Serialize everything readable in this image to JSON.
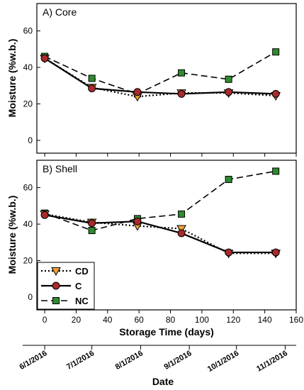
{
  "chart_data": {
    "type": "line",
    "xlabel": "Storage Time (days)",
    "secondary_xlabel": "Date",
    "ylabel": "Moisture (%w.b.)",
    "xlim": [
      -5,
      160
    ],
    "xticks": [
      0,
      20,
      40,
      60,
      80,
      100,
      120,
      140,
      160
    ],
    "ylim": [
      -7,
      75
    ],
    "yticks": [
      0,
      20,
      40,
      60
    ],
    "date_ticks": [
      {
        "label": "6/1/2016",
        "day": 0
      },
      {
        "label": "7/1/2016",
        "day": 30
      },
      {
        "label": "8/1/2016",
        "day": 61
      },
      {
        "label": "9/1/2016",
        "day": 92
      },
      {
        "label": "10/1/2016",
        "day": 122
      },
      {
        "label": "11/1/2016",
        "day": 153
      }
    ],
    "legend": {
      "placement": "bottom-left",
      "panel": "shell",
      "entries": [
        "CD",
        "C",
        "NC"
      ]
    },
    "panels": [
      {
        "id": "core",
        "title": "A) Core",
        "series": [
          {
            "name": "CD",
            "x": [
              0,
              30,
              59,
              87,
              117,
              147
            ],
            "y": [
              45,
              29,
              24,
              26,
              26,
              24.5
            ]
          },
          {
            "name": "C",
            "x": [
              0,
              30,
              59,
              87,
              117,
              147
            ],
            "y": [
              45,
              28.5,
              26.5,
              25.5,
              26.5,
              25.5
            ]
          },
          {
            "name": "NC",
            "x": [
              0,
              30,
              59,
              87,
              117,
              147
            ],
            "y": [
              46,
              34,
              25.5,
              37,
              33.5,
              48.5
            ]
          }
        ]
      },
      {
        "id": "shell",
        "title": "B) Shell",
        "series": [
          {
            "name": "CD",
            "x": [
              0,
              30,
              59,
              87,
              117,
              147
            ],
            "y": [
              45.5,
              41,
              39,
              37.5,
              24,
              24
            ]
          },
          {
            "name": "C",
            "x": [
              0,
              30,
              59,
              87,
              117,
              147
            ],
            "y": [
              45,
              40.5,
              41.5,
              35,
              24.5,
              24.5
            ]
          },
          {
            "name": "NC",
            "x": [
              0,
              30,
              59,
              87,
              117,
              147
            ],
            "y": [
              46,
              36.5,
              43,
              45.5,
              64.5,
              69
            ]
          }
        ]
      }
    ],
    "series_styles": {
      "CD": {
        "marker": "triangle-down",
        "fill": "#f5a03a",
        "dash": "2,3",
        "width": 2.2
      },
      "C": {
        "marker": "circle",
        "fill": "#a82a2a",
        "dash": "",
        "width": 2.2
      },
      "NC": {
        "marker": "square",
        "fill": "#2e8b2e",
        "dash": "9,5",
        "width": 1.6
      }
    }
  }
}
